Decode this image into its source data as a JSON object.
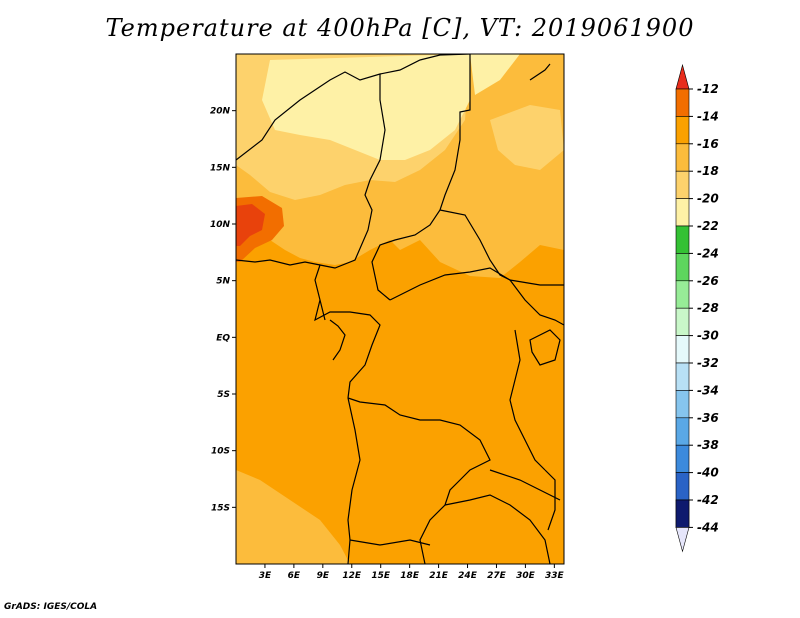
{
  "title": "Temperature at 400hPa [C], VT: 2019061900",
  "credit": "GrADS: IGES/COLA",
  "colors": {
    "background_field": "#fba100",
    "frame": "#000000"
  },
  "map": {
    "lon_range": [
      0,
      34
    ],
    "lat_range": [
      -20,
      25
    ],
    "lat_ticks": [
      {
        "value": 20,
        "label": "20N"
      },
      {
        "value": 15,
        "label": "15N"
      },
      {
        "value": 10,
        "label": "10N"
      },
      {
        "value": 5,
        "label": "5N"
      },
      {
        "value": 0,
        "label": "EQ"
      },
      {
        "value": -5,
        "label": "5S"
      },
      {
        "value": -10,
        "label": "10S"
      },
      {
        "value": -15,
        "label": "15S"
      }
    ],
    "lon_ticks": [
      {
        "value": 3,
        "label": "3E"
      },
      {
        "value": 6,
        "label": "6E"
      },
      {
        "value": 9,
        "label": "9E"
      },
      {
        "value": 12,
        "label": "12E"
      },
      {
        "value": 15,
        "label": "15E"
      },
      {
        "value": 18,
        "label": "18E"
      },
      {
        "value": 21,
        "label": "21E"
      },
      {
        "value": 24,
        "label": "24E"
      },
      {
        "value": 27,
        "label": "27E"
      },
      {
        "value": 30,
        "label": "30E"
      },
      {
        "value": 33,
        "label": "33E"
      }
    ]
  },
  "colorbar": {
    "levels": [
      {
        "label": "-12",
        "color": "#e8420c"
      },
      {
        "label": "-14",
        "color": "#f26e00"
      },
      {
        "label": "-16",
        "color": "#fba100"
      },
      {
        "label": "-18",
        "color": "#fcbc3c"
      },
      {
        "label": "-20",
        "color": "#fdd26c"
      },
      {
        "label": "-22",
        "color": "#fef1a6"
      },
      {
        "label": "-24",
        "color": "#34c134"
      },
      {
        "label": "-26",
        "color": "#5ed65e"
      },
      {
        "label": "-28",
        "color": "#97ec97"
      },
      {
        "label": "-30",
        "color": "#c9f7c9"
      },
      {
        "label": "-32",
        "color": "#e5f9fb"
      },
      {
        "label": "-34",
        "color": "#b8e0f5"
      },
      {
        "label": "-36",
        "color": "#86c5ee"
      },
      {
        "label": "-38",
        "color": "#5aa8e6"
      },
      {
        "label": "-40",
        "color": "#3c8adc"
      },
      {
        "label": "-42",
        "color": "#2a63c6"
      },
      {
        "label": "-44",
        "color": "#1c3fa8"
      }
    ],
    "top_arrow_color": "#e82d1c",
    "bottom_cell_color": "#0e1a6e",
    "bottom_arrow_color": "#e6e6fb"
  }
}
